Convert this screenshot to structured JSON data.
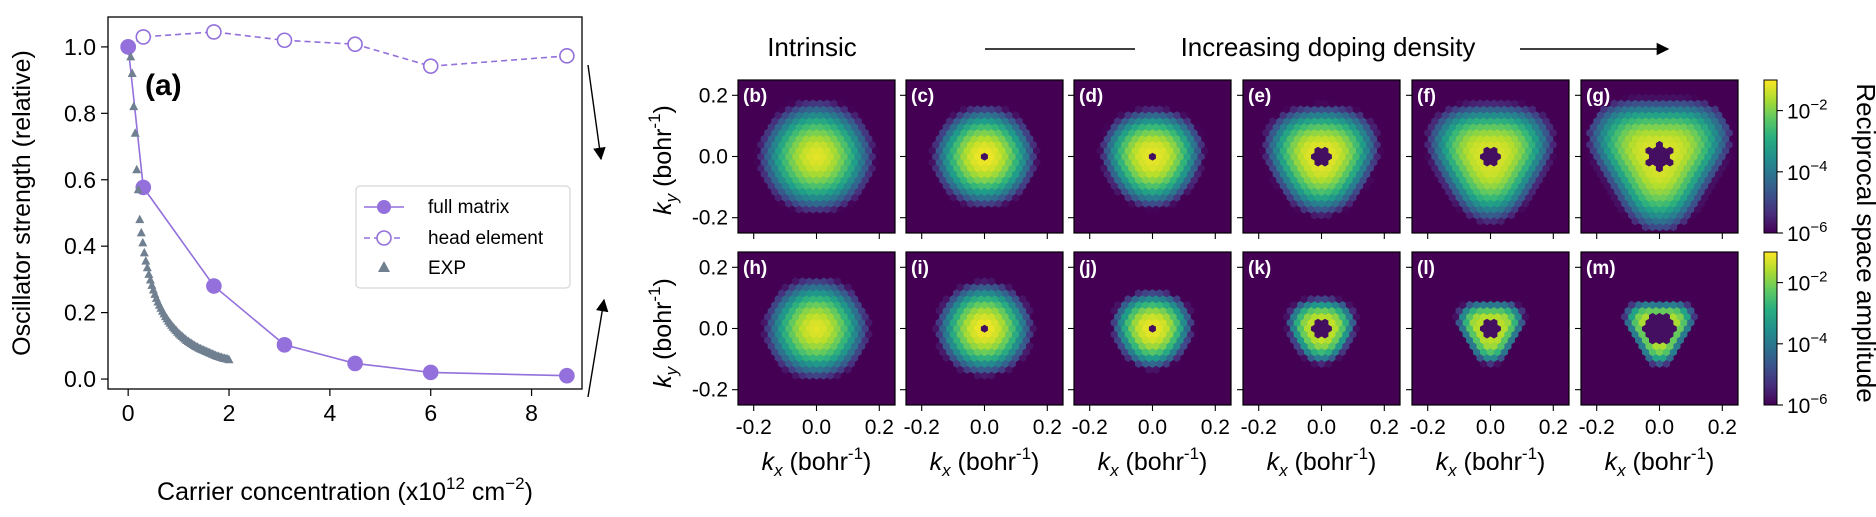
{
  "chart_data": [
    {
      "panel": "(a)",
      "type": "line",
      "xlabel": "Carrier concentration (x10",
      "xlabel_sup": "12",
      "xlabel_unit": "cm",
      "xlabel_unit_sup": "−2",
      "xlabel_close": ")",
      "ylabel": "Oscillator strength (relative)",
      "xlim": [
        -0.4,
        9.0
      ],
      "ylim": [
        -0.03,
        1.09
      ],
      "xticks": [
        0,
        2,
        4,
        6,
        8
      ],
      "yticks": [
        0.0,
        0.2,
        0.4,
        0.6,
        0.8,
        1.0
      ],
      "xtick_labels": [
        "0",
        "2",
        "4",
        "6",
        "8"
      ],
      "ytick_labels": [
        "0.0",
        "0.2",
        "0.4",
        "0.6",
        "0.8",
        "1.0"
      ],
      "color": "#9370db",
      "exp_color": "#708090",
      "legend_position": "center-right",
      "series": [
        {
          "name": "full matrix",
          "style": "solid-filled-circle",
          "x": [
            0.0,
            0.3,
            1.7,
            3.1,
            4.5,
            6.0,
            8.7
          ],
          "y": [
            1.0,
            0.577,
            0.28,
            0.103,
            0.047,
            0.02,
            0.01
          ]
        },
        {
          "name": "head element",
          "style": "dashed-open-circle",
          "x": [
            0.0,
            0.3,
            1.7,
            3.1,
            4.5,
            6.0,
            8.7
          ],
          "y": [
            1.0,
            1.03,
            1.045,
            1.02,
            1.008,
            0.942,
            0.973
          ]
        },
        {
          "name": "EXP",
          "style": "triangle",
          "x": [
            0.05,
            0.08,
            0.11,
            0.14,
            0.17,
            0.2,
            0.23,
            0.26,
            0.29,
            0.32,
            0.35,
            0.38,
            0.41,
            0.44,
            0.47,
            0.5,
            0.53,
            0.56,
            0.59,
            0.62,
            0.65,
            0.68,
            0.71,
            0.74,
            0.77,
            0.8,
            0.83,
            0.86,
            0.89,
            0.92,
            0.95,
            0.98,
            1.01,
            1.04,
            1.07,
            1.1,
            1.13,
            1.16,
            1.19,
            1.22,
            1.25,
            1.28,
            1.31,
            1.34,
            1.37,
            1.4,
            1.43,
            1.46,
            1.49,
            1.52,
            1.55,
            1.58,
            1.61,
            1.64,
            1.67,
            1.7,
            1.73,
            1.76,
            1.79,
            1.82,
            1.85,
            1.88,
            1.91,
            1.94,
            1.97,
            2.0
          ],
          "y": [
            0.97,
            0.92,
            0.82,
            0.74,
            0.63,
            0.57,
            0.48,
            0.44,
            0.41,
            0.38,
            0.355,
            0.335,
            0.315,
            0.298,
            0.282,
            0.268,
            0.255,
            0.243,
            0.232,
            0.222,
            0.213,
            0.204,
            0.196,
            0.188,
            0.181,
            0.174,
            0.168,
            0.162,
            0.156,
            0.151,
            0.146,
            0.141,
            0.136,
            0.132,
            0.128,
            0.124,
            0.12,
            0.116,
            0.113,
            0.11,
            0.107,
            0.104,
            0.101,
            0.098,
            0.096,
            0.093,
            0.091,
            0.089,
            0.087,
            0.085,
            0.083,
            0.081,
            0.079,
            0.077,
            0.075,
            0.073,
            0.071,
            0.069,
            0.068,
            0.066,
            0.065,
            0.063,
            0.062,
            0.061,
            0.06,
            0.058
          ]
        }
      ]
    },
    {
      "panels": "(b)-(m)",
      "type": "heatmap",
      "header_left": "Intrinsic",
      "header_center": "Increasing doping density",
      "xlabel_var": "k",
      "xlabel_sub": "x",
      "xlabel_unit": " (bohr",
      "xlabel_unit_sup": "-1",
      "xlabel_unit_close": ")",
      "ylabel_var": "k",
      "ylabel_sub": "y",
      "ylabel_unit": " (bohr",
      "ylabel_unit_sup": "-1",
      "ylabel_unit_close": ")",
      "xlim": [
        -0.25,
        0.25
      ],
      "ylim": [
        -0.25,
        0.25
      ],
      "xticks": [
        -0.2,
        0.0,
        0.2
      ],
      "yticks": [
        -0.2,
        0.0,
        0.2
      ],
      "xtick_labels": [
        "-0.2",
        "0.0",
        "0.2"
      ],
      "ytick_labels": [
        "-0.2",
        "0.0",
        "0.2"
      ],
      "colorbar_label": "Reciprocal space amplitude",
      "colorbar_tick_base": "10",
      "colorbar_tick_exps": [
        "−2",
        "−4",
        "−6"
      ],
      "colorbar_range": [
        1e-06,
        0.1
      ],
      "colormap": "viridis",
      "rows": [
        [
          {
            "label": "(b)",
            "hole": 0.0,
            "spread": 0.165,
            "tri": 0.0,
            "peak": -1.2
          },
          {
            "label": "(c)",
            "hole": 0.008,
            "spread": 0.14,
            "tri": 0.0,
            "peak": -1.1
          },
          {
            "label": "(d)",
            "hole": 0.018,
            "spread": 0.13,
            "tri": 0.1,
            "peak": -1.2
          },
          {
            "label": "(e)",
            "hole": 0.025,
            "spread": 0.14,
            "tri": 0.2,
            "peak": -1.2
          },
          {
            "label": "(f)",
            "hole": 0.03,
            "spread": 0.15,
            "tri": 0.3,
            "peak": -1.3
          },
          {
            "label": "(g)",
            "hole": 0.04,
            "spread": 0.16,
            "tri": 0.4,
            "peak": -1.3
          }
        ],
        [
          {
            "label": "(h)",
            "hole": 0.0,
            "spread": 0.15,
            "tri": 0.0,
            "peak": -1.2
          },
          {
            "label": "(i)",
            "hole": 0.008,
            "spread": 0.13,
            "tri": 0.0,
            "peak": -1.1
          },
          {
            "label": "(j)",
            "hole": 0.018,
            "spread": 0.1,
            "tri": 0.1,
            "peak": -1.2
          },
          {
            "label": "(k)",
            "hole": 0.028,
            "spread": 0.075,
            "tri": 0.2,
            "peak": -1.4
          },
          {
            "label": "(l)",
            "hole": 0.036,
            "spread": 0.062,
            "tri": 0.4,
            "peak": -1.5
          },
          {
            "label": "(m)",
            "hole": 0.045,
            "spread": 0.055,
            "tri": 0.5,
            "peak": -1.6
          }
        ]
      ]
    }
  ]
}
